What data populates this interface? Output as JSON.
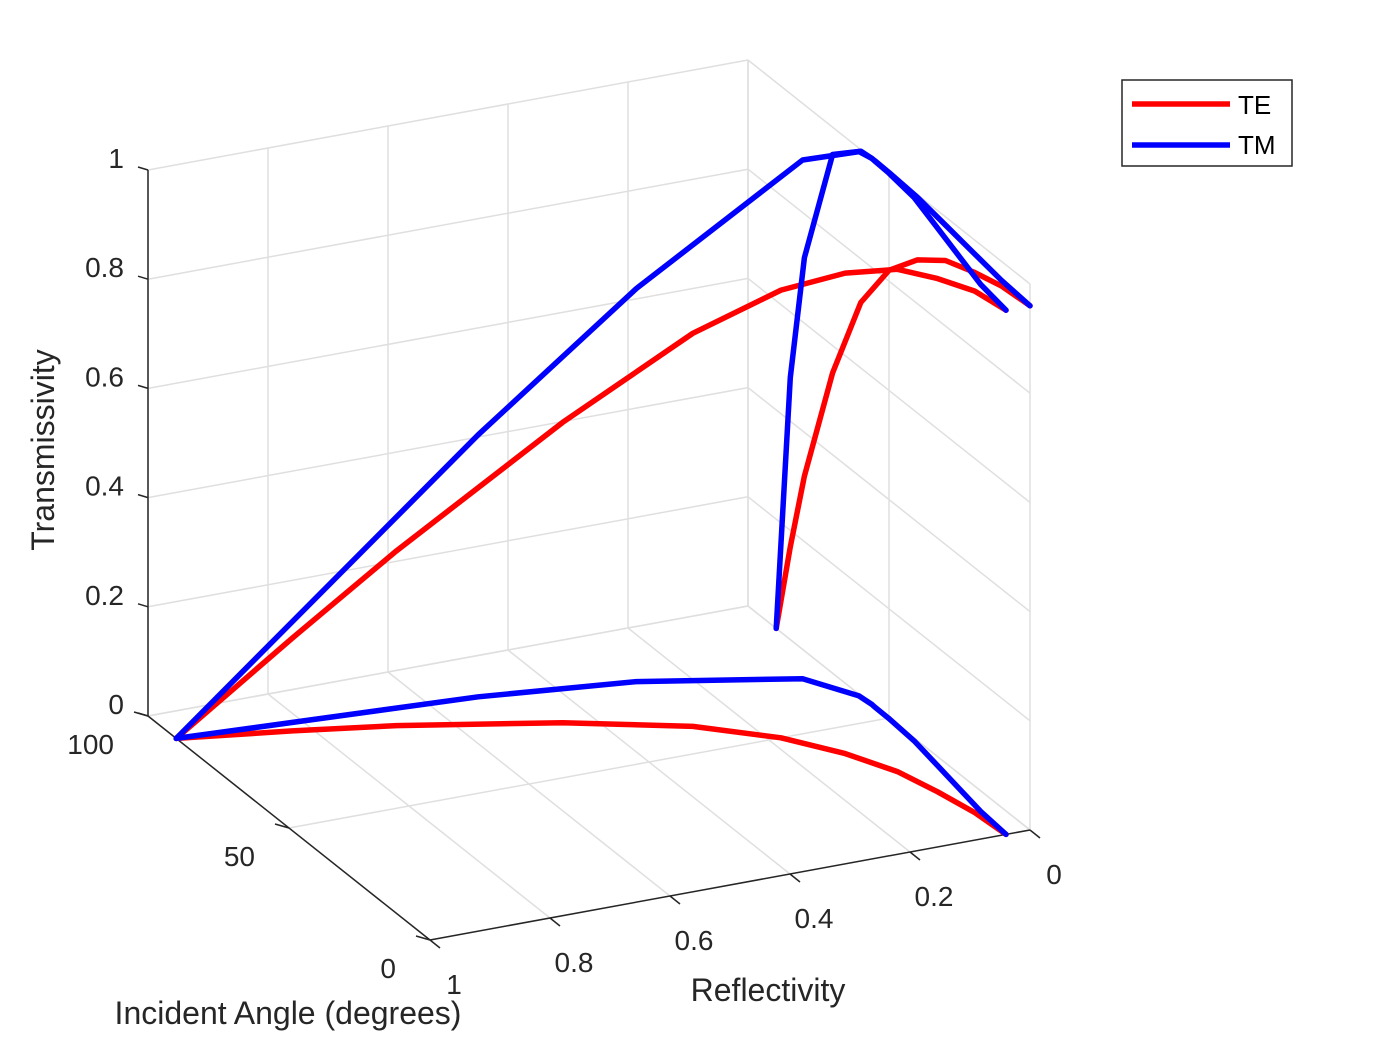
{
  "chart_data": {
    "type": "line",
    "view": "3d",
    "title": "",
    "xlabel": "Reflectivity",
    "ylabel": "Incident Angle (degrees)",
    "zlabel": "Transmissivity",
    "xlim": [
      0,
      1
    ],
    "ylim": [
      0,
      100
    ],
    "zlim": [
      0,
      1
    ],
    "x_direction": "reversed",
    "x_ticks": [
      "0",
      "0.2",
      "0.4",
      "0.6",
      "0.8",
      "1"
    ],
    "y_ticks": [
      "0",
      "50",
      "100"
    ],
    "z_ticks": [
      "0",
      "0.2",
      "0.4",
      "0.6",
      "0.8",
      "1"
    ],
    "grid": true,
    "box": "back planes",
    "legend": {
      "location": "top-right",
      "entries": [
        "TE",
        "TM"
      ]
    },
    "colors": {
      "TE": "#ff0000",
      "TM": "#0000ff",
      "grid": "#dfdfdf",
      "axis": "#262626"
    },
    "series": [
      {
        "name": "TE",
        "color": "#ff0000",
        "curve_3d": {
          "theta": [
            0,
            10,
            20,
            30,
            40,
            50,
            60,
            70,
            80,
            85,
            90
          ],
          "reflectivity": [
            0.04,
            0.045,
            0.06,
            0.08,
            0.12,
            0.18,
            0.28,
            0.45,
            0.68,
            0.83,
            1.0
          ],
          "transmissivity": [
            0.96,
            0.955,
            0.94,
            0.92,
            0.88,
            0.82,
            0.72,
            0.55,
            0.32,
            0.17,
            0.0
          ]
        },
        "projection_R_theta": {
          "theta": [
            0,
            10,
            20,
            30,
            40,
            50,
            60,
            70,
            80,
            85,
            90
          ],
          "reflectivity": [
            0.04,
            0.045,
            0.06,
            0.08,
            0.12,
            0.18,
            0.28,
            0.45,
            0.68,
            0.83,
            1.0
          ]
        }
      },
      {
        "name": "TM",
        "color": "#0000ff",
        "curve_3d": {
          "theta": [
            0,
            10,
            20,
            30,
            40,
            50,
            55,
            56,
            60,
            70,
            80,
            85,
            90
          ],
          "reflectivity": [
            0.04,
            0.035,
            0.025,
            0.015,
            0.005,
            0.001,
            0.0005,
            0.0,
            0.003,
            0.05,
            0.28,
            0.52,
            1.0
          ],
          "transmissivity": [
            0.96,
            0.965,
            0.975,
            0.985,
            0.995,
            0.999,
            1.0,
            1.0,
            0.997,
            0.95,
            0.72,
            0.48,
            0.0
          ]
        },
        "projection_R_theta": {
          "theta": [
            0,
            10,
            20,
            30,
            40,
            50,
            55,
            56,
            60,
            70,
            80,
            85,
            90
          ],
          "reflectivity": [
            0.04,
            0.035,
            0.025,
            0.015,
            0.005,
            0.001,
            0.0005,
            0.0,
            0.003,
            0.05,
            0.28,
            0.52,
            1.0
          ]
        }
      }
    ]
  }
}
